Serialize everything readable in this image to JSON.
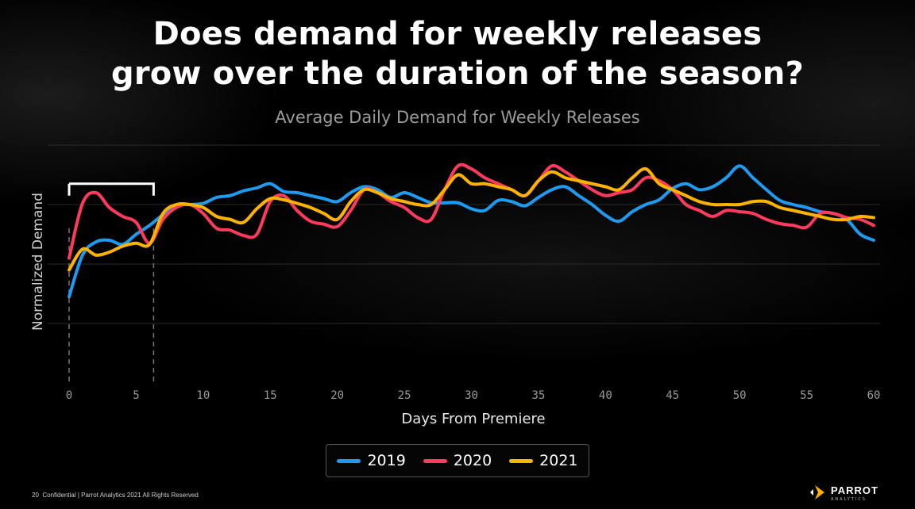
{
  "title_line1": "Does demand for weekly releases",
  "title_line2": "grow over the duration of the season?",
  "footer": {
    "page": "20",
    "text": "Confidential | Parrot Analytics 2021 All Rights Reserved"
  },
  "logo": {
    "name": "PARROT",
    "sub": "ANALYTICS"
  },
  "colors": {
    "2019": "#1e9bf0",
    "2020": "#ff3a5c",
    "2021": "#ffb300",
    "grid": "#2a2a2a",
    "bracket": "#ffffff"
  },
  "chart_data": {
    "type": "line",
    "title": "Average Daily Demand for Weekly Releases",
    "xlabel": "Days From Premiere",
    "ylabel": "Normalized Demand",
    "xlim": [
      0,
      60
    ],
    "ylim": [
      0,
      4
    ],
    "xticks": [
      0,
      5,
      10,
      15,
      20,
      25,
      30,
      35,
      40,
      45,
      50,
      55,
      60
    ],
    "grid": "horizontal",
    "legend": "bottom-center",
    "annotation": "bracket over days 0-6",
    "x": [
      0,
      1,
      2,
      3,
      4,
      5,
      6,
      7,
      8,
      9,
      10,
      11,
      12,
      13,
      14,
      15,
      16,
      17,
      18,
      19,
      20,
      21,
      22,
      23,
      24,
      25,
      26,
      27,
      28,
      29,
      30,
      31,
      32,
      33,
      34,
      35,
      36,
      37,
      38,
      39,
      40,
      41,
      42,
      43,
      44,
      45,
      46,
      47,
      48,
      49,
      50,
      51,
      52,
      53,
      54,
      55,
      56,
      57,
      58,
      59,
      60
    ],
    "series": [
      {
        "name": "2019",
        "values": [
          1.45,
          2.15,
          2.37,
          2.4,
          2.33,
          2.5,
          2.65,
          2.83,
          2.98,
          3.0,
          3.02,
          3.12,
          3.15,
          3.23,
          3.28,
          3.35,
          3.22,
          3.2,
          3.15,
          3.1,
          3.05,
          3.2,
          3.3,
          3.25,
          3.12,
          3.2,
          3.12,
          3.03,
          3.03,
          3.03,
          2.93,
          2.9,
          3.07,
          3.05,
          2.98,
          3.12,
          3.25,
          3.3,
          3.15,
          3.0,
          2.82,
          2.72,
          2.88,
          3.0,
          3.08,
          3.27,
          3.35,
          3.25,
          3.3,
          3.45,
          3.65,
          3.45,
          3.25,
          3.07,
          3.0,
          2.95,
          2.88,
          2.85,
          2.75,
          2.5,
          2.4
        ]
      },
      {
        "name": "2020",
        "values": [
          2.1,
          3.02,
          3.2,
          2.95,
          2.8,
          2.7,
          2.35,
          2.75,
          2.95,
          3.0,
          2.85,
          2.6,
          2.57,
          2.48,
          2.5,
          3.05,
          3.15,
          2.9,
          2.72,
          2.67,
          2.63,
          2.9,
          3.25,
          3.2,
          3.05,
          2.95,
          2.78,
          2.75,
          3.25,
          3.65,
          3.6,
          3.45,
          3.35,
          3.25,
          3.15,
          3.4,
          3.65,
          3.55,
          3.4,
          3.25,
          3.15,
          3.2,
          3.25,
          3.45,
          3.4,
          3.25,
          3.0,
          2.9,
          2.8,
          2.9,
          2.88,
          2.85,
          2.75,
          2.68,
          2.65,
          2.62,
          2.85,
          2.85,
          2.78,
          2.75,
          2.65
        ]
      },
      {
        "name": "2021",
        "values": [
          1.9,
          2.25,
          2.15,
          2.2,
          2.3,
          2.35,
          2.33,
          2.85,
          3.0,
          3.0,
          2.95,
          2.8,
          2.75,
          2.7,
          2.93,
          3.1,
          3.08,
          3.02,
          2.95,
          2.85,
          2.75,
          3.05,
          3.25,
          3.2,
          3.1,
          3.05,
          3.0,
          3.0,
          3.25,
          3.5,
          3.35,
          3.35,
          3.3,
          3.25,
          3.15,
          3.4,
          3.55,
          3.45,
          3.4,
          3.35,
          3.3,
          3.25,
          3.45,
          3.6,
          3.35,
          3.25,
          3.15,
          3.05,
          3.0,
          3.0,
          3.0,
          3.05,
          3.05,
          2.95,
          2.9,
          2.85,
          2.8,
          2.75,
          2.75,
          2.8,
          2.78
        ]
      }
    ]
  }
}
